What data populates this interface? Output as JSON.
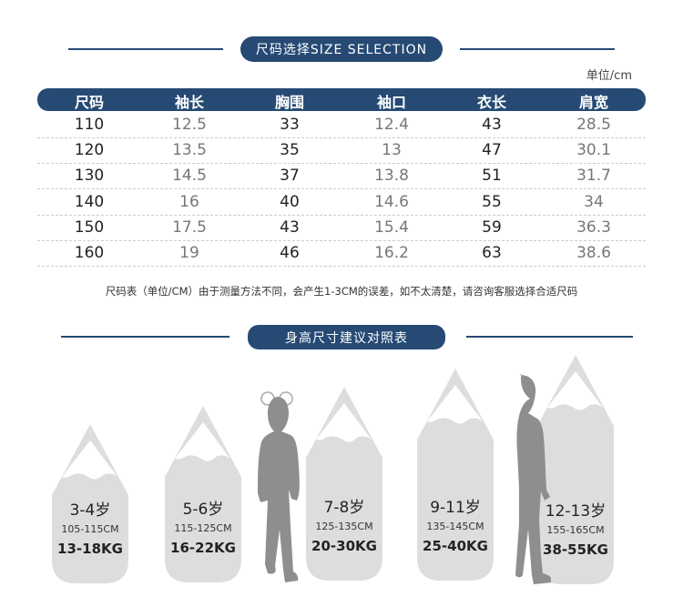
{
  "size_section": {
    "title": "尺码选择SIZE SELECTION",
    "unit": "单位/cm",
    "headers": [
      "尺码",
      "袖长",
      "胸围",
      "袖口",
      "衣长",
      "肩宽"
    ],
    "rows": [
      [
        "110",
        "12.5",
        "33",
        "12.4",
        "43",
        "28.5"
      ],
      [
        "120",
        "13.5",
        "35",
        "13",
        "47",
        "30.1"
      ],
      [
        "130",
        "14.5",
        "37",
        "13.8",
        "51",
        "31.7"
      ],
      [
        "140",
        "16",
        "40",
        "14.6",
        "55",
        "34"
      ],
      [
        "150",
        "17.5",
        "43",
        "15.4",
        "59",
        "36.3"
      ],
      [
        "160",
        "19",
        "46",
        "16.2",
        "63",
        "38.6"
      ]
    ],
    "note": "尺码表（单位/CM）由于测量方法不同，会产生1-3CM的误差，如不太清楚，请咨询客服选择合适尺码"
  },
  "height_section": {
    "title": "身高尺寸建议对照表",
    "items": [
      {
        "age": "3-4岁",
        "height": "105-115CM",
        "weight": "13-18KG"
      },
      {
        "age": "5-6岁",
        "height": "115-125CM",
        "weight": "16-22KG"
      },
      {
        "age": "7-8岁",
        "height": "125-135CM",
        "weight": "20-30KG"
      },
      {
        "age": "9-11岁",
        "height": "135-145CM",
        "weight": "25-40KG"
      },
      {
        "age": "12-13岁",
        "height": "155-165CM",
        "weight": "38-55KG"
      }
    ]
  },
  "colors": {
    "accent": "#264a74",
    "pencil": "#dcdedd",
    "silhouette": "#8e8e8e"
  }
}
